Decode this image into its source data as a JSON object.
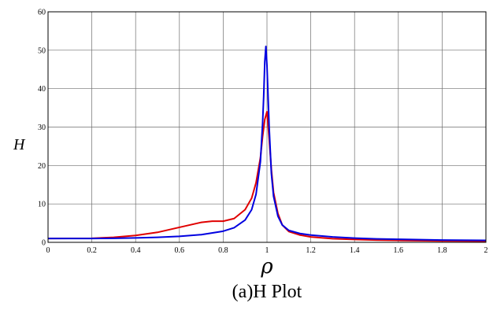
{
  "chart_data": {
    "type": "line",
    "title": "",
    "caption": "(a)H Plot",
    "xlabel": "ρ",
    "ylabel": "H",
    "xlim": [
      0,
      2
    ],
    "ylim": [
      0,
      60
    ],
    "xticks": [
      0,
      0.2,
      0.4,
      0.6,
      0.8,
      1,
      1.2,
      1.4,
      1.6,
      1.8,
      2
    ],
    "yticks": [
      0,
      10,
      20,
      30,
      40,
      50,
      60
    ],
    "grid": true,
    "legend": "none",
    "series": [
      {
        "color": "#e00000",
        "x": [
          0,
          0.2,
          0.3,
          0.4,
          0.5,
          0.6,
          0.7,
          0.75,
          0.8,
          0.85,
          0.9,
          0.93,
          0.95,
          0.97,
          0.98,
          0.99,
          1.0,
          1.01,
          1.02,
          1.03,
          1.05,
          1.07,
          1.1,
          1.15,
          1.2,
          1.3,
          1.4,
          1.5,
          1.6,
          1.8,
          2.0
        ],
        "y": [
          1.0,
          1.05,
          1.3,
          1.8,
          2.6,
          3.9,
          5.2,
          5.5,
          5.5,
          6.2,
          8.5,
          11.5,
          15.5,
          22.0,
          27.5,
          32.0,
          34.0,
          27.0,
          19.0,
          13.0,
          7.5,
          4.5,
          2.8,
          1.9,
          1.4,
          0.95,
          0.75,
          0.6,
          0.5,
          0.35,
          0.3
        ]
      },
      {
        "color": "#0000e0",
        "x": [
          0,
          0.2,
          0.3,
          0.4,
          0.5,
          0.6,
          0.7,
          0.8,
          0.85,
          0.9,
          0.93,
          0.95,
          0.97,
          0.98,
          0.985,
          0.99,
          0.995,
          1.0,
          1.01,
          1.02,
          1.03,
          1.05,
          1.07,
          1.1,
          1.15,
          1.2,
          1.3,
          1.4,
          1.5,
          1.6,
          1.8,
          2.0
        ],
        "y": [
          1.0,
          1.0,
          1.05,
          1.15,
          1.3,
          1.55,
          2.0,
          2.9,
          3.8,
          5.8,
          8.5,
          12.5,
          21.0,
          31.0,
          38.0,
          47.0,
          51.0,
          46.0,
          30.0,
          18.0,
          12.0,
          6.8,
          4.5,
          3.1,
          2.3,
          1.9,
          1.4,
          1.1,
          0.9,
          0.8,
          0.6,
          0.5
        ]
      }
    ]
  }
}
